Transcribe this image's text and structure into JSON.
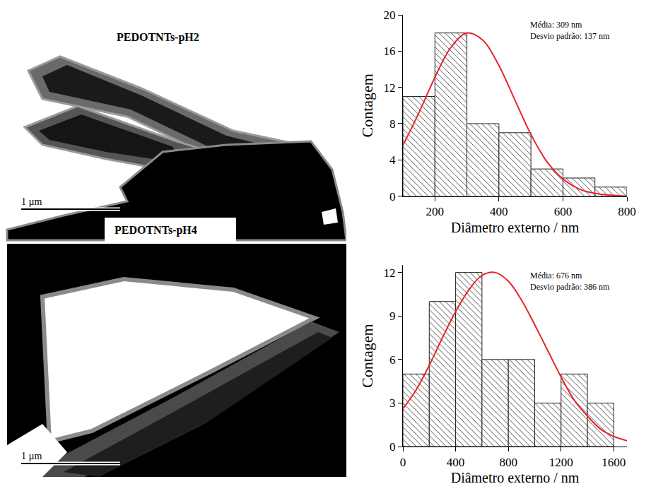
{
  "images": [
    {
      "label": "PEDOTNTs-pH2",
      "scale_bar": "1 µm"
    },
    {
      "label": "PEDOTNTs-pH4",
      "scale_bar": "1 µm"
    }
  ],
  "chart_data": [
    {
      "type": "histogram",
      "bins": [
        100,
        200,
        300,
        400,
        500,
        600,
        700,
        800
      ],
      "values": [
        11,
        18,
        8,
        7,
        3,
        2,
        1
      ],
      "color": "#3c3c3c",
      "xlabel": "Diâmetro externo / nm",
      "ylabel": "Contagem",
      "xlim": [
        100,
        800
      ],
      "xticks": [
        200,
        400,
        600,
        800
      ],
      "ylim": [
        0,
        20
      ],
      "yticks": [
        0,
        4,
        8,
        12,
        16,
        20
      ],
      "grid": false,
      "annotations": [
        "Média: 309 nm",
        "Desvio padrão: 137 nm"
      ],
      "fit": {
        "type": "line",
        "color": "#e8232a",
        "x": [
          100,
          150,
          200,
          250,
          300,
          350,
          400,
          450,
          500,
          550,
          600,
          650,
          700,
          750,
          800
        ],
        "values": [
          5.6,
          9.2,
          13.1,
          16.4,
          18.0,
          17.2,
          14.4,
          10.6,
          6.8,
          3.8,
          1.9,
          0.8,
          0.3,
          0.1,
          0.0
        ]
      }
    },
    {
      "type": "histogram",
      "bins": [
        0,
        200,
        400,
        600,
        800,
        1000,
        1200,
        1400,
        1600
      ],
      "values": [
        5,
        10,
        12,
        6,
        6,
        3,
        5,
        3
      ],
      "color": "#3c3c3c",
      "xlabel": "Diâmetro externo / nm",
      "ylabel": "Contagem",
      "xlim": [
        0,
        1700
      ],
      "xticks": [
        0,
        400,
        800,
        1200,
        1600
      ],
      "ylim": [
        0,
        12.5
      ],
      "yticks": [
        0,
        3,
        6,
        9,
        12
      ],
      "grid": false,
      "annotations": [
        "Média: 676 nm",
        "Desvio padrão: 386 nm"
      ],
      "fit": {
        "type": "line",
        "color": "#e8232a",
        "x": [
          0,
          100,
          200,
          300,
          400,
          500,
          600,
          700,
          800,
          900,
          1000,
          1100,
          1200,
          1300,
          1400,
          1500,
          1600,
          1700
        ],
        "values": [
          2.6,
          3.9,
          5.6,
          7.5,
          9.3,
          10.8,
          11.8,
          12.0,
          11.4,
          10.1,
          8.4,
          6.6,
          4.8,
          3.2,
          2.1,
          1.2,
          0.7,
          0.4
        ]
      }
    }
  ]
}
